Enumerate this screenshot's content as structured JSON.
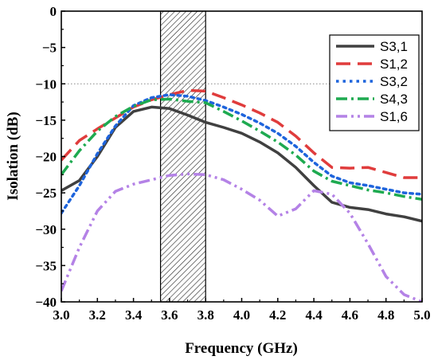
{
  "chart_data": {
    "type": "line",
    "title": "",
    "xlabel": "Frequency (GHz)",
    "ylabel": "Isolation (dB)",
    "xlim": [
      3.0,
      5.0
    ],
    "ylim": [
      -40,
      0
    ],
    "xticks": [
      3.0,
      3.2,
      3.4,
      3.6,
      3.8,
      4.0,
      4.2,
      4.4,
      4.6,
      4.8,
      5.0
    ],
    "xtick_labels": [
      "3.0",
      "3.2",
      "3.4",
      "3.6",
      "3.8",
      "4.0",
      "4.2",
      "4.4",
      "4.6",
      "4.8",
      "5.0"
    ],
    "yticks": [
      0,
      -5,
      -10,
      -15,
      -20,
      -25,
      -30,
      -35,
      -40
    ],
    "ytick_labels": [
      "0",
      "−5",
      "−10",
      "−15",
      "−20",
      "−25",
      "−30",
      "−35",
      "−40"
    ],
    "grid": false,
    "legend_position": "top-right",
    "reference_line": {
      "y": -10,
      "style": "dotted",
      "color": "#888888"
    },
    "shaded_band": {
      "x_start": 3.55,
      "x_end": 3.8,
      "pattern": "hatched"
    },
    "series": [
      {
        "name": "S3,1",
        "color": "#404040",
        "dash": "solid",
        "x": [
          3.0,
          3.1,
          3.2,
          3.3,
          3.4,
          3.5,
          3.6,
          3.7,
          3.8,
          3.9,
          4.0,
          4.1,
          4.2,
          4.3,
          4.4,
          4.5,
          4.6,
          4.7,
          4.8,
          4.9,
          5.0
        ],
        "y": [
          -24.7,
          -23.3,
          -20.0,
          -16.0,
          -13.8,
          -13.2,
          -13.4,
          -14.3,
          -15.3,
          -16.0,
          -16.8,
          -18.0,
          -19.5,
          -21.5,
          -24.0,
          -26.3,
          -27.0,
          -27.3,
          -27.9,
          -28.3,
          -28.9
        ]
      },
      {
        "name": "S1,2",
        "color": "#e03c3c",
        "dash": "long-dash",
        "x": [
          3.0,
          3.1,
          3.2,
          3.3,
          3.4,
          3.5,
          3.6,
          3.7,
          3.8,
          3.9,
          4.0,
          4.1,
          4.2,
          4.3,
          4.4,
          4.5,
          4.6,
          4.7,
          4.8,
          4.9,
          5.0
        ],
        "y": [
          -20.5,
          -17.8,
          -16.2,
          -14.7,
          -13.2,
          -12.2,
          -11.5,
          -10.9,
          -11.0,
          -11.9,
          -12.9,
          -14.0,
          -15.3,
          -17.2,
          -19.5,
          -21.5,
          -21.6,
          -21.5,
          -22.2,
          -22.9,
          -22.9
        ]
      },
      {
        "name": "S3,2",
        "color": "#1e64dc",
        "dash": "dotted",
        "x": [
          3.0,
          3.1,
          3.2,
          3.3,
          3.4,
          3.5,
          3.6,
          3.7,
          3.8,
          3.9,
          4.0,
          4.1,
          4.2,
          4.3,
          4.4,
          4.5,
          4.6,
          4.7,
          4.8,
          4.9,
          5.0
        ],
        "y": [
          -27.8,
          -24.0,
          -19.6,
          -15.8,
          -13.0,
          -11.9,
          -11.5,
          -11.7,
          -12.3,
          -13.2,
          -14.2,
          -15.4,
          -16.8,
          -18.6,
          -20.8,
          -22.7,
          -23.6,
          -24.0,
          -24.5,
          -25.0,
          -25.2
        ]
      },
      {
        "name": "S4,3",
        "color": "#1eaa50",
        "dash": "dash-dot",
        "x": [
          3.0,
          3.1,
          3.2,
          3.3,
          3.4,
          3.5,
          3.6,
          3.7,
          3.8,
          3.9,
          4.0,
          4.1,
          4.2,
          4.3,
          4.4,
          4.5,
          4.6,
          4.7,
          4.8,
          4.9,
          5.0
        ],
        "y": [
          -22.5,
          -19.2,
          -16.5,
          -14.5,
          -13.1,
          -12.2,
          -12.1,
          -12.4,
          -12.6,
          -13.8,
          -15.1,
          -16.5,
          -18.0,
          -19.8,
          -22.0,
          -23.4,
          -24.0,
          -24.6,
          -25.0,
          -25.5,
          -25.9
        ]
      },
      {
        "name": "S1,6",
        "color": "#b482e6",
        "dash": "dash-dot-dot",
        "x": [
          3.0,
          3.1,
          3.2,
          3.3,
          3.4,
          3.5,
          3.6,
          3.7,
          3.8,
          3.9,
          4.0,
          4.1,
          4.2,
          4.3,
          4.4,
          4.5,
          4.6,
          4.7,
          4.8,
          4.9,
          5.0
        ],
        "y": [
          -38.5,
          -32.5,
          -27.5,
          -24.8,
          -23.8,
          -23.2,
          -22.6,
          -22.4,
          -22.5,
          -23.2,
          -24.5,
          -26.0,
          -28.2,
          -27.2,
          -24.7,
          -25.2,
          -27.8,
          -32.0,
          -36.5,
          -39.0,
          -40.0
        ]
      }
    ]
  }
}
